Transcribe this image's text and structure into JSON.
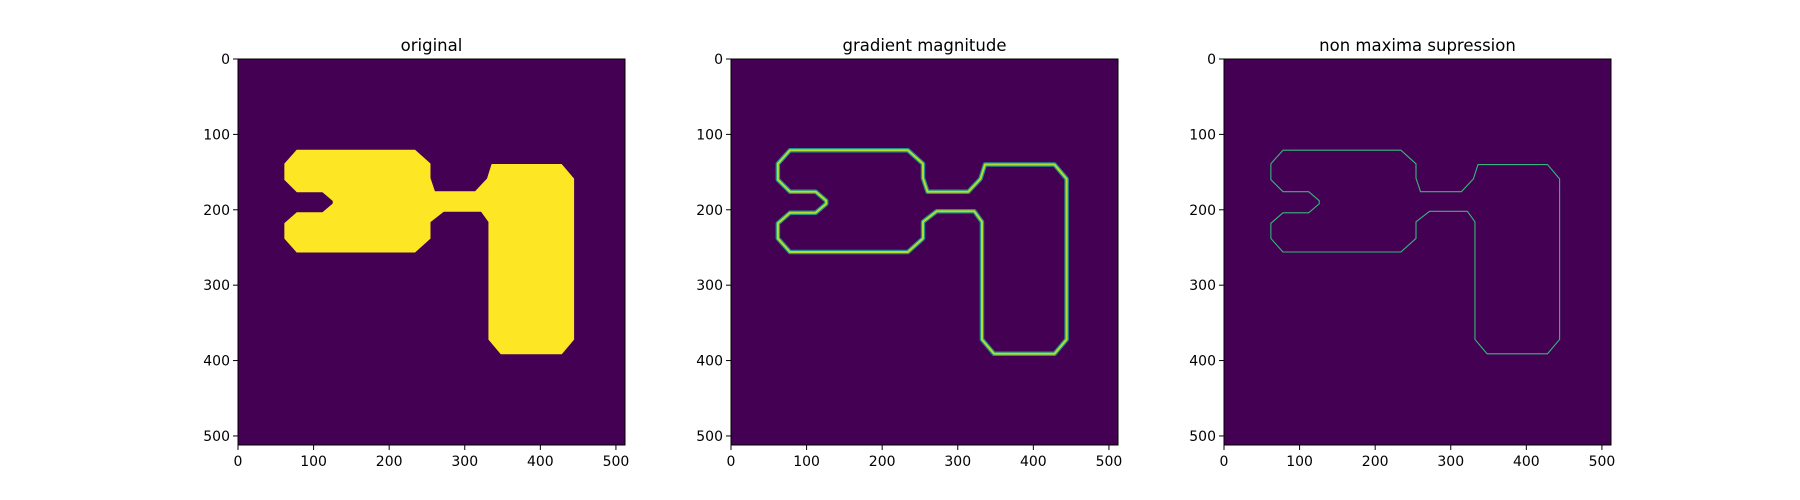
{
  "chart_data": [
    {
      "type": "heatmap",
      "title": "original",
      "xlim": [
        0,
        512
      ],
      "ylim": [
        512,
        0
      ],
      "xticks": [
        0,
        100,
        200,
        300,
        400,
        500
      ],
      "yticks": [
        0,
        100,
        200,
        300,
        400,
        500
      ],
      "grid": false,
      "legend": "none",
      "colormap": "viridis",
      "render": "fill",
      "background_color": "#440154",
      "foreground_color": "#fde725",
      "shape_outline": [
        [
          78,
          121
        ],
        [
          234,
          121
        ],
        [
          254,
          139
        ],
        [
          254,
          158
        ],
        [
          260,
          176
        ],
        [
          314,
          176
        ],
        [
          330,
          159
        ],
        [
          336,
          140
        ],
        [
          428,
          140
        ],
        [
          444,
          159
        ],
        [
          444,
          372
        ],
        [
          428,
          391
        ],
        [
          348,
          391
        ],
        [
          332,
          372
        ],
        [
          332,
          216
        ],
        [
          322,
          202
        ],
        [
          272,
          202
        ],
        [
          254,
          216
        ],
        [
          254,
          238
        ],
        [
          234,
          256
        ],
        [
          78,
          256
        ],
        [
          62,
          238
        ],
        [
          62,
          218
        ],
        [
          78,
          204
        ],
        [
          112,
          204
        ],
        [
          126,
          192
        ],
        [
          126,
          188
        ],
        [
          112,
          176
        ],
        [
          78,
          176
        ],
        [
          62,
          160
        ],
        [
          62,
          139
        ]
      ]
    },
    {
      "type": "heatmap",
      "title": "gradient magnitude",
      "xlim": [
        0,
        512
      ],
      "ylim": [
        512,
        0
      ],
      "xticks": [
        0,
        100,
        200,
        300,
        400,
        500
      ],
      "yticks": [
        0,
        100,
        200,
        300,
        400,
        500
      ],
      "grid": false,
      "legend": "none",
      "colormap": "viridis",
      "render": "thick-edge",
      "background_color": "#440154",
      "edge_outer_color": "#21918c",
      "edge_inner_color": "#b5de2b"
    },
    {
      "type": "heatmap",
      "title": "non maxima supression",
      "xlim": [
        0,
        512
      ],
      "ylim": [
        512,
        0
      ],
      "xticks": [
        0,
        100,
        200,
        300,
        400,
        500
      ],
      "yticks": [
        0,
        100,
        200,
        300,
        400,
        500
      ],
      "grid": false,
      "legend": "none",
      "colormap": "viridis",
      "render": "thin-edge",
      "background_color": "#440154",
      "edge_color": "#35b779"
    }
  ]
}
